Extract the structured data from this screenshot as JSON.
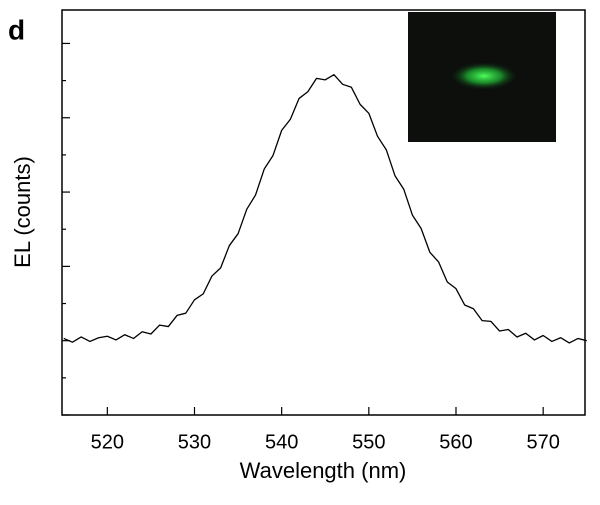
{
  "chart_data": {
    "type": "line",
    "panel_label": "d",
    "xlabel": "Wavelength (nm)",
    "ylabel": "EL (counts)",
    "x": [
      515,
      516,
      517,
      518,
      519,
      520,
      521,
      522,
      523,
      524,
      525,
      526,
      527,
      528,
      529,
      530,
      531,
      532,
      533,
      534,
      535,
      536,
      537,
      538,
      539,
      540,
      541,
      542,
      543,
      544,
      545,
      546,
      547,
      548,
      549,
      550,
      551,
      552,
      553,
      554,
      555,
      556,
      557,
      558,
      559,
      560,
      561,
      562,
      563,
      564,
      565,
      566,
      567,
      568,
      569,
      570,
      571,
      572,
      573,
      574,
      575
    ],
    "values": [
      1.03,
      0.98,
      1.05,
      0.99,
      1.04,
      1.06,
      1.01,
      1.08,
      1.03,
      1.12,
      1.09,
      1.21,
      1.19,
      1.34,
      1.37,
      1.55,
      1.63,
      1.87,
      1.98,
      2.28,
      2.44,
      2.77,
      2.96,
      3.31,
      3.49,
      3.83,
      3.98,
      4.26,
      4.35,
      4.53,
      4.51,
      4.58,
      4.45,
      4.41,
      4.18,
      4.06,
      3.75,
      3.57,
      3.22,
      3.04,
      2.69,
      2.51,
      2.19,
      2.06,
      1.79,
      1.7,
      1.48,
      1.43,
      1.27,
      1.26,
      1.13,
      1.15,
      1.05,
      1.1,
      1.01,
      1.07,
      0.99,
      1.04,
      0.97,
      1.03,
      1.0
    ],
    "color": "#000000",
    "xlim": [
      514.8,
      574.8
    ],
    "xticks": [
      520,
      530,
      540,
      550,
      560,
      570
    ],
    "ylim": [
      0,
      5.45
    ],
    "yticks": [
      0,
      0.5,
      1,
      1.5,
      2,
      2.5,
      3,
      3.5,
      4,
      4.5,
      5
    ],
    "y_tick_labels": false
  }
}
